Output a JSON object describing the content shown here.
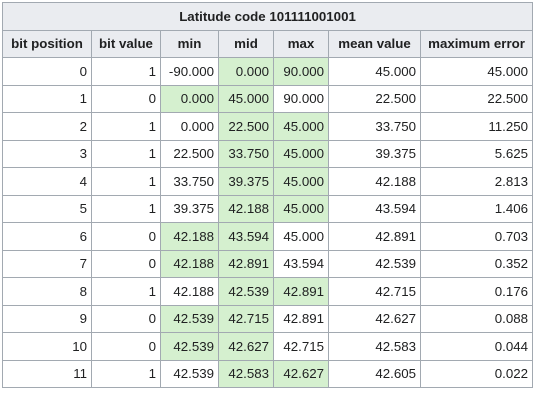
{
  "table": {
    "caption": "Latitude code 101111001001",
    "headers": [
      "bit position",
      "bit value",
      "min",
      "mid",
      "max",
      "mean value",
      "maximum error"
    ],
    "rows": [
      {
        "pos": "0",
        "bit": "1",
        "min": "-90.000",
        "mid": "0.000",
        "max": "90.000",
        "mean": "45.000",
        "err": "45.000",
        "hl": [
          "mid",
          "max"
        ]
      },
      {
        "pos": "1",
        "bit": "0",
        "min": "0.000",
        "mid": "45.000",
        "max": "90.000",
        "mean": "22.500",
        "err": "22.500",
        "hl": [
          "min",
          "mid"
        ]
      },
      {
        "pos": "2",
        "bit": "1",
        "min": "0.000",
        "mid": "22.500",
        "max": "45.000",
        "mean": "33.750",
        "err": "11.250",
        "hl": [
          "mid",
          "max"
        ]
      },
      {
        "pos": "3",
        "bit": "1",
        "min": "22.500",
        "mid": "33.750",
        "max": "45.000",
        "mean": "39.375",
        "err": "5.625",
        "hl": [
          "mid",
          "max"
        ]
      },
      {
        "pos": "4",
        "bit": "1",
        "min": "33.750",
        "mid": "39.375",
        "max": "45.000",
        "mean": "42.188",
        "err": "2.813",
        "hl": [
          "mid",
          "max"
        ]
      },
      {
        "pos": "5",
        "bit": "1",
        "min": "39.375",
        "mid": "42.188",
        "max": "45.000",
        "mean": "43.594",
        "err": "1.406",
        "hl": [
          "mid",
          "max"
        ]
      },
      {
        "pos": "6",
        "bit": "0",
        "min": "42.188",
        "mid": "43.594",
        "max": "45.000",
        "mean": "42.891",
        "err": "0.703",
        "hl": [
          "min",
          "mid"
        ]
      },
      {
        "pos": "7",
        "bit": "0",
        "min": "42.188",
        "mid": "42.891",
        "max": "43.594",
        "mean": "42.539",
        "err": "0.352",
        "hl": [
          "min",
          "mid"
        ]
      },
      {
        "pos": "8",
        "bit": "1",
        "min": "42.188",
        "mid": "42.539",
        "max": "42.891",
        "mean": "42.715",
        "err": "0.176",
        "hl": [
          "mid",
          "max"
        ]
      },
      {
        "pos": "9",
        "bit": "0",
        "min": "42.539",
        "mid": "42.715",
        "max": "42.891",
        "mean": "42.627",
        "err": "0.088",
        "hl": [
          "min",
          "mid"
        ]
      },
      {
        "pos": "10",
        "bit": "0",
        "min": "42.539",
        "mid": "42.627",
        "max": "42.715",
        "mean": "42.583",
        "err": "0.044",
        "hl": [
          "min",
          "mid"
        ]
      },
      {
        "pos": "11",
        "bit": "1",
        "min": "42.539",
        "mid": "42.583",
        "max": "42.627",
        "mean": "42.605",
        "err": "0.022",
        "hl": [
          "mid",
          "max"
        ]
      }
    ],
    "colors": {
      "header_bg": "#eaecf0",
      "highlight_bg": "#d5f0cf",
      "border": "#a2a9b1"
    }
  }
}
